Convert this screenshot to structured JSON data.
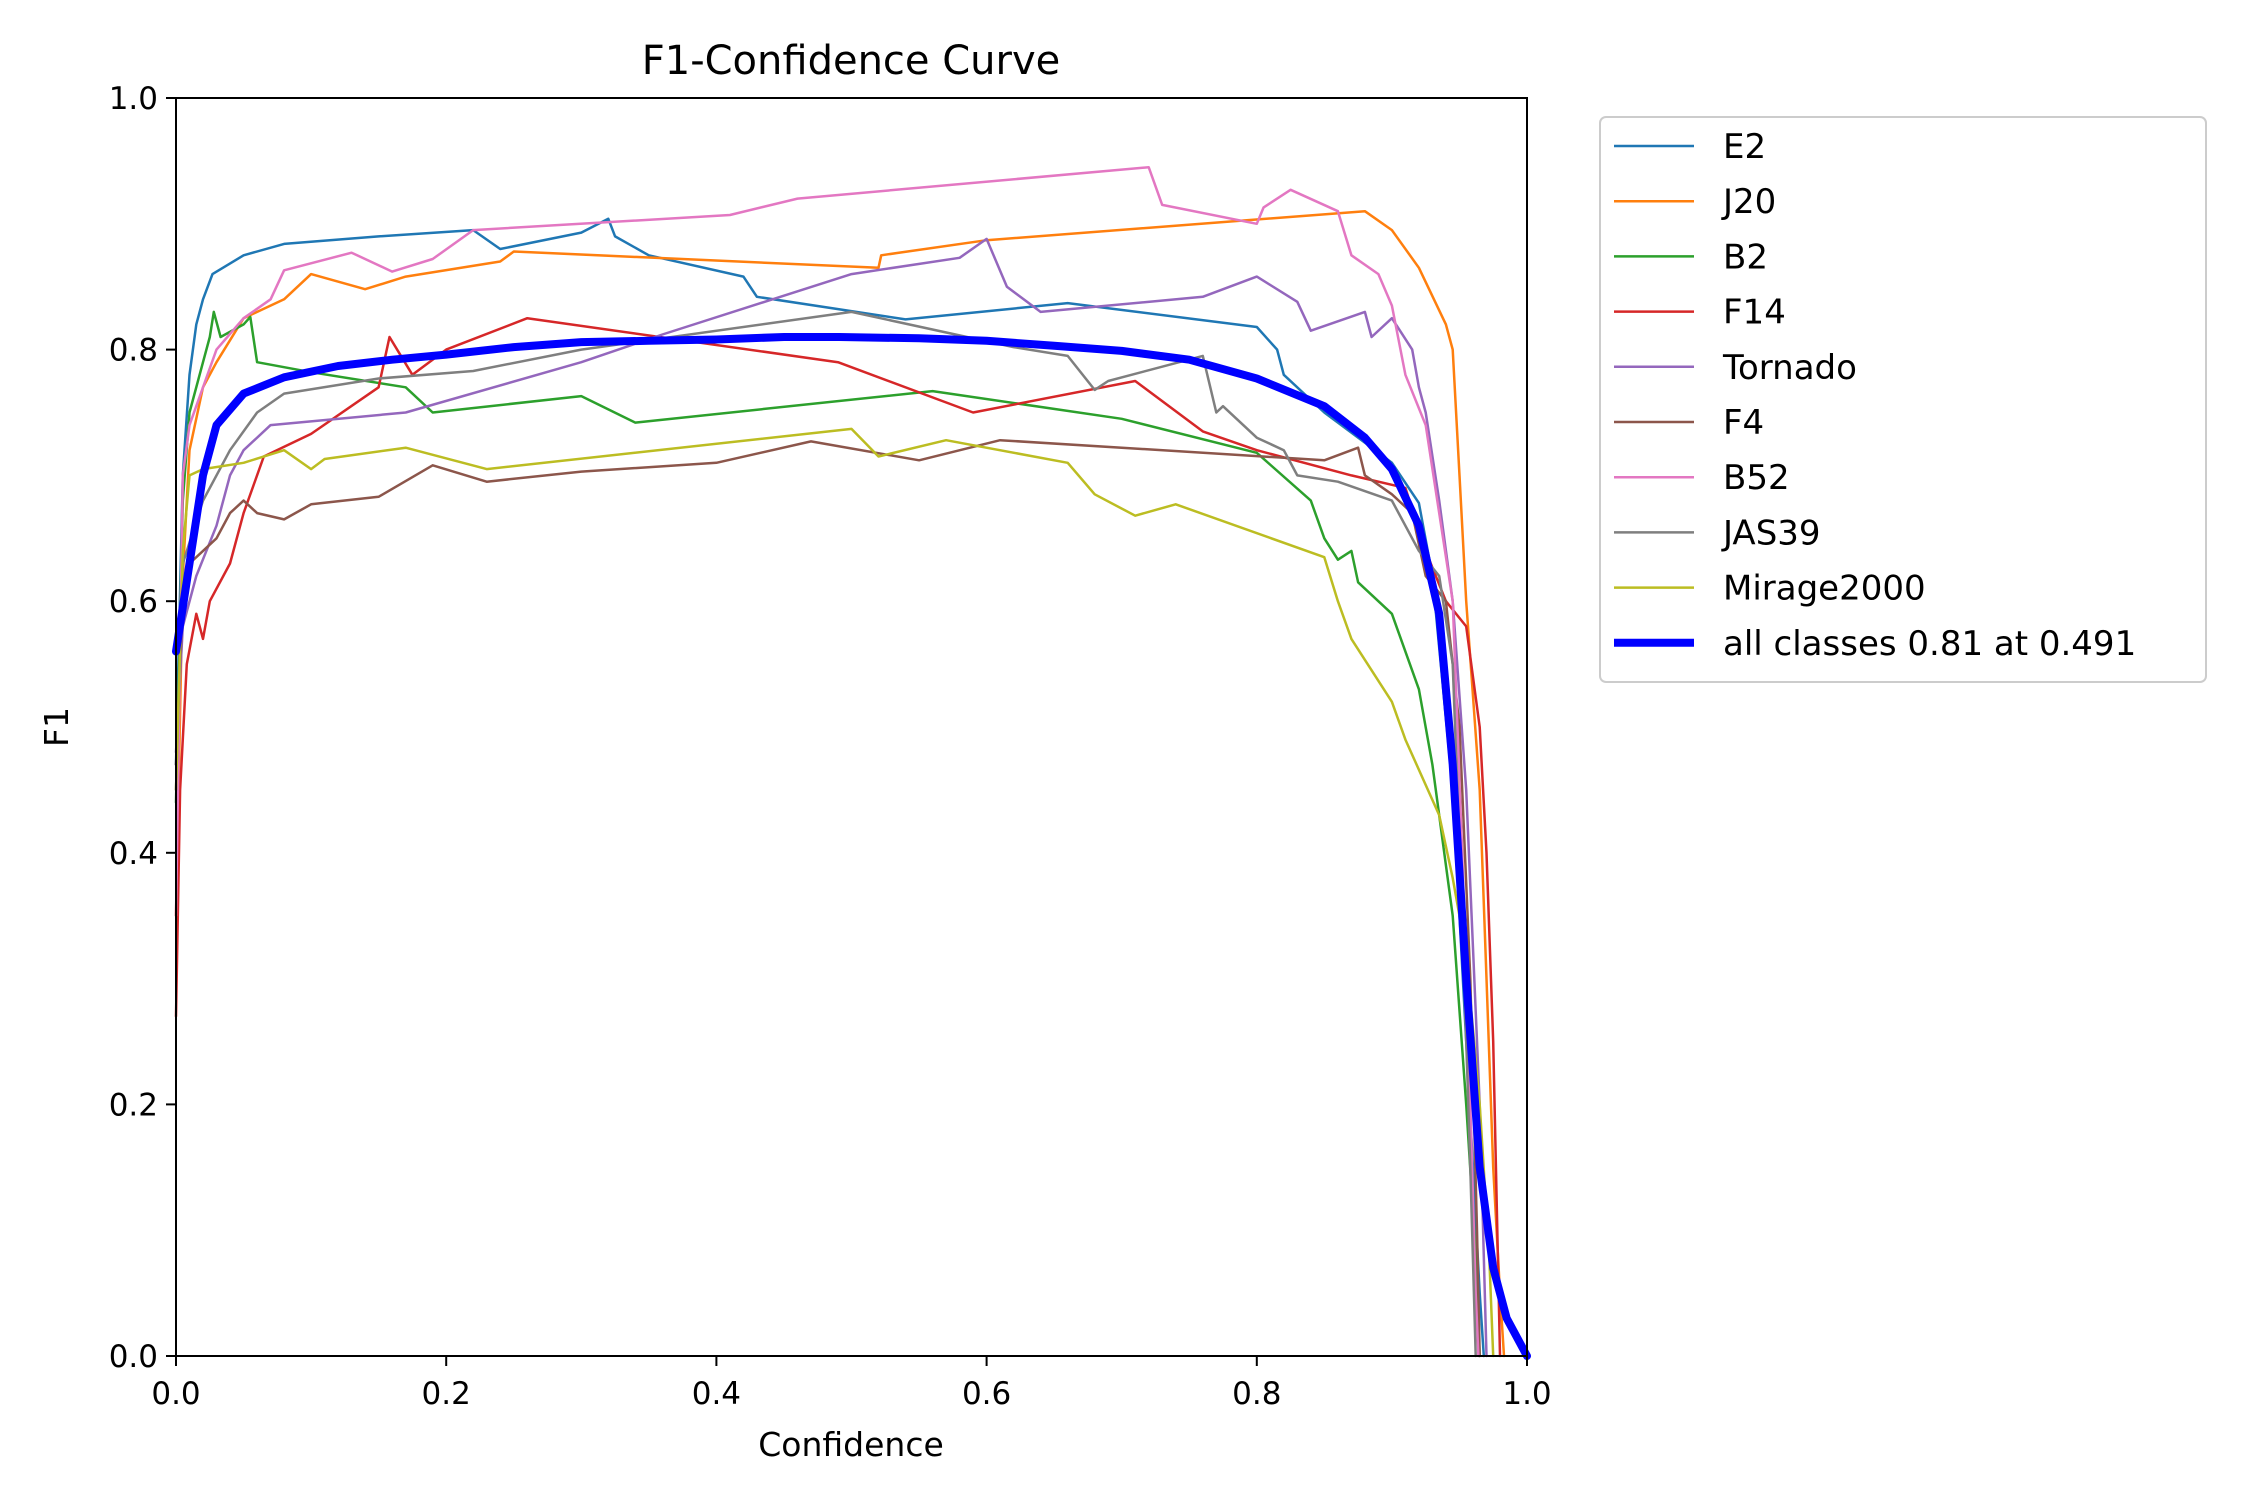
{
  "chart_data": {
    "type": "line",
    "title": "F1-Confidence Curve",
    "xlabel": "Confidence",
    "ylabel": "F1",
    "xlim": [
      0,
      1
    ],
    "ylim": [
      0,
      1
    ],
    "xticks": [
      "0.0",
      "0.2",
      "0.4",
      "0.6",
      "0.8",
      "1.0"
    ],
    "yticks": [
      "0.0",
      "0.2",
      "0.4",
      "0.6",
      "0.8",
      "1.0"
    ],
    "grid": false,
    "legend_position": "outside-upper-right",
    "series": [
      {
        "name": "E2",
        "color": "#1f77b4",
        "width": "thin",
        "points": [
          [
            0,
            0.47
          ],
          [
            0.005,
            0.7
          ],
          [
            0.01,
            0.78
          ],
          [
            0.015,
            0.82
          ],
          [
            0.02,
            0.84
          ],
          [
            0.027,
            0.86
          ],
          [
            0.05,
            0.875
          ],
          [
            0.08,
            0.884
          ],
          [
            0.15,
            0.89
          ],
          [
            0.22,
            0.895
          ],
          [
            0.24,
            0.88
          ],
          [
            0.3,
            0.893
          ],
          [
            0.32,
            0.904
          ],
          [
            0.325,
            0.89
          ],
          [
            0.35,
            0.875
          ],
          [
            0.42,
            0.858
          ],
          [
            0.43,
            0.842
          ],
          [
            0.54,
            0.824
          ],
          [
            0.66,
            0.837
          ],
          [
            0.8,
            0.818
          ],
          [
            0.815,
            0.8
          ],
          [
            0.82,
            0.78
          ],
          [
            0.85,
            0.75
          ],
          [
            0.9,
            0.71
          ],
          [
            0.92,
            0.678
          ],
          [
            0.93,
            0.62
          ],
          [
            0.945,
            0.45
          ],
          [
            0.955,
            0.25
          ],
          [
            0.965,
            0.05
          ],
          [
            0.968,
            0
          ]
        ]
      },
      {
        "name": "J20",
        "color": "#ff7f0e",
        "width": "thin",
        "points": [
          [
            0,
            0.35
          ],
          [
            0.005,
            0.62
          ],
          [
            0.01,
            0.72
          ],
          [
            0.02,
            0.77
          ],
          [
            0.03,
            0.79
          ],
          [
            0.05,
            0.825
          ],
          [
            0.08,
            0.84
          ],
          [
            0.1,
            0.86
          ],
          [
            0.14,
            0.848
          ],
          [
            0.17,
            0.858
          ],
          [
            0.24,
            0.87
          ],
          [
            0.25,
            0.878
          ],
          [
            0.52,
            0.865
          ],
          [
            0.522,
            0.875
          ],
          [
            0.6,
            0.887
          ],
          [
            0.88,
            0.91
          ],
          [
            0.9,
            0.895
          ],
          [
            0.92,
            0.865
          ],
          [
            0.94,
            0.82
          ],
          [
            0.945,
            0.8
          ],
          [
            0.95,
            0.7
          ],
          [
            0.955,
            0.6
          ],
          [
            0.965,
            0.45
          ],
          [
            0.97,
            0.3
          ],
          [
            0.975,
            0.15
          ],
          [
            0.98,
            0.05
          ],
          [
            0.983,
            0
          ]
        ]
      },
      {
        "name": "B2",
        "color": "#2ca02c",
        "width": "thin",
        "points": [
          [
            0,
            0.44
          ],
          [
            0.005,
            0.68
          ],
          [
            0.01,
            0.75
          ],
          [
            0.02,
            0.79
          ],
          [
            0.025,
            0.81
          ],
          [
            0.028,
            0.83
          ],
          [
            0.033,
            0.81
          ],
          [
            0.05,
            0.82
          ],
          [
            0.055,
            0.826
          ],
          [
            0.06,
            0.79
          ],
          [
            0.1,
            0.782
          ],
          [
            0.17,
            0.77
          ],
          [
            0.19,
            0.75
          ],
          [
            0.3,
            0.763
          ],
          [
            0.34,
            0.742
          ],
          [
            0.56,
            0.767
          ],
          [
            0.7,
            0.745
          ],
          [
            0.8,
            0.718
          ],
          [
            0.84,
            0.68
          ],
          [
            0.85,
            0.65
          ],
          [
            0.86,
            0.633
          ],
          [
            0.87,
            0.64
          ],
          [
            0.875,
            0.615
          ],
          [
            0.9,
            0.59
          ],
          [
            0.92,
            0.53
          ],
          [
            0.93,
            0.47
          ],
          [
            0.945,
            0.35
          ],
          [
            0.955,
            0.2
          ],
          [
            0.962,
            0.08
          ],
          [
            0.965,
            0
          ]
        ]
      },
      {
        "name": "F14",
        "color": "#d62728",
        "width": "thin",
        "points": [
          [
            0,
            0.27
          ],
          [
            0.003,
            0.45
          ],
          [
            0.008,
            0.55
          ],
          [
            0.015,
            0.59
          ],
          [
            0.02,
            0.57
          ],
          [
            0.025,
            0.6
          ],
          [
            0.04,
            0.63
          ],
          [
            0.05,
            0.67
          ],
          [
            0.065,
            0.715
          ],
          [
            0.1,
            0.733
          ],
          [
            0.15,
            0.77
          ],
          [
            0.158,
            0.81
          ],
          [
            0.175,
            0.78
          ],
          [
            0.2,
            0.8
          ],
          [
            0.26,
            0.825
          ],
          [
            0.49,
            0.79
          ],
          [
            0.59,
            0.75
          ],
          [
            0.71,
            0.775
          ],
          [
            0.76,
            0.735
          ],
          [
            0.8,
            0.72
          ],
          [
            0.87,
            0.7
          ],
          [
            0.91,
            0.69
          ],
          [
            0.925,
            0.64
          ],
          [
            0.94,
            0.6
          ],
          [
            0.955,
            0.58
          ],
          [
            0.965,
            0.5
          ],
          [
            0.97,
            0.4
          ],
          [
            0.975,
            0.25
          ],
          [
            0.978,
            0.1
          ],
          [
            0.98,
            0
          ]
        ]
      },
      {
        "name": "Tornado",
        "color": "#9467bd",
        "width": "thin",
        "points": [
          [
            0,
            0.48
          ],
          [
            0.005,
            0.58
          ],
          [
            0.015,
            0.62
          ],
          [
            0.03,
            0.66
          ],
          [
            0.04,
            0.7
          ],
          [
            0.05,
            0.72
          ],
          [
            0.07,
            0.74
          ],
          [
            0.17,
            0.75
          ],
          [
            0.3,
            0.79
          ],
          [
            0.36,
            0.812
          ],
          [
            0.5,
            0.86
          ],
          [
            0.58,
            0.873
          ],
          [
            0.6,
            0.888
          ],
          [
            0.615,
            0.85
          ],
          [
            0.64,
            0.83
          ],
          [
            0.76,
            0.842
          ],
          [
            0.8,
            0.858
          ],
          [
            0.83,
            0.838
          ],
          [
            0.84,
            0.815
          ],
          [
            0.88,
            0.83
          ],
          [
            0.885,
            0.81
          ],
          [
            0.9,
            0.825
          ],
          [
            0.915,
            0.8
          ],
          [
            0.92,
            0.77
          ],
          [
            0.925,
            0.75
          ],
          [
            0.935,
            0.68
          ],
          [
            0.945,
            0.6
          ],
          [
            0.955,
            0.45
          ],
          [
            0.965,
            0.2
          ],
          [
            0.97,
            0
          ]
        ]
      },
      {
        "name": "F4",
        "color": "#8c564b",
        "width": "thin",
        "points": [
          [
            0,
            0.47
          ],
          [
            0.005,
            0.6
          ],
          [
            0.01,
            0.63
          ],
          [
            0.02,
            0.64
          ],
          [
            0.03,
            0.65
          ],
          [
            0.04,
            0.67
          ],
          [
            0.05,
            0.68
          ],
          [
            0.06,
            0.67
          ],
          [
            0.08,
            0.665
          ],
          [
            0.1,
            0.677
          ],
          [
            0.15,
            0.683
          ],
          [
            0.19,
            0.708
          ],
          [
            0.23,
            0.695
          ],
          [
            0.3,
            0.703
          ],
          [
            0.4,
            0.71
          ],
          [
            0.47,
            0.727
          ],
          [
            0.55,
            0.712
          ],
          [
            0.61,
            0.728
          ],
          [
            0.85,
            0.712
          ],
          [
            0.875,
            0.722
          ],
          [
            0.88,
            0.7
          ],
          [
            0.9,
            0.685
          ],
          [
            0.915,
            0.67
          ],
          [
            0.925,
            0.62
          ],
          [
            0.94,
            0.6
          ],
          [
            0.95,
            0.5
          ],
          [
            0.958,
            0.3
          ],
          [
            0.963,
            0.1
          ],
          [
            0.965,
            0
          ]
        ]
      },
      {
        "name": "B52",
        "color": "#e377c2",
        "width": "thin",
        "points": [
          [
            0,
            0.35
          ],
          [
            0.005,
            0.7
          ],
          [
            0.01,
            0.74
          ],
          [
            0.02,
            0.77
          ],
          [
            0.03,
            0.8
          ],
          [
            0.05,
            0.825
          ],
          [
            0.07,
            0.84
          ],
          [
            0.08,
            0.863
          ],
          [
            0.13,
            0.877
          ],
          [
            0.16,
            0.862
          ],
          [
            0.19,
            0.872
          ],
          [
            0.22,
            0.895
          ],
          [
            0.41,
            0.907
          ],
          [
            0.46,
            0.92
          ],
          [
            0.72,
            0.945
          ],
          [
            0.73,
            0.915
          ],
          [
            0.8,
            0.9
          ],
          [
            0.805,
            0.913
          ],
          [
            0.825,
            0.927
          ],
          [
            0.86,
            0.91
          ],
          [
            0.87,
            0.875
          ],
          [
            0.89,
            0.86
          ],
          [
            0.9,
            0.835
          ],
          [
            0.91,
            0.78
          ],
          [
            0.925,
            0.74
          ],
          [
            0.935,
            0.67
          ],
          [
            0.945,
            0.6
          ],
          [
            0.952,
            0.4
          ],
          [
            0.958,
            0.2
          ],
          [
            0.962,
            0.05
          ],
          [
            0.964,
            0
          ]
        ]
      },
      {
        "name": "JAS39",
        "color": "#7f7f7f",
        "width": "thin",
        "points": [
          [
            0,
            0.45
          ],
          [
            0.005,
            0.63
          ],
          [
            0.02,
            0.68
          ],
          [
            0.04,
            0.72
          ],
          [
            0.06,
            0.75
          ],
          [
            0.08,
            0.765
          ],
          [
            0.15,
            0.777
          ],
          [
            0.22,
            0.783
          ],
          [
            0.3,
            0.8
          ],
          [
            0.5,
            0.83
          ],
          [
            0.62,
            0.802
          ],
          [
            0.66,
            0.795
          ],
          [
            0.68,
            0.768
          ],
          [
            0.69,
            0.775
          ],
          [
            0.76,
            0.795
          ],
          [
            0.77,
            0.75
          ],
          [
            0.775,
            0.755
          ],
          [
            0.8,
            0.73
          ],
          [
            0.82,
            0.72
          ],
          [
            0.83,
            0.7
          ],
          [
            0.86,
            0.695
          ],
          [
            0.9,
            0.68
          ],
          [
            0.92,
            0.64
          ],
          [
            0.935,
            0.62
          ],
          [
            0.945,
            0.55
          ],
          [
            0.952,
            0.35
          ],
          [
            0.958,
            0.15
          ],
          [
            0.962,
            0
          ]
        ]
      },
      {
        "name": "Mirage2000",
        "color": "#bcbd22",
        "width": "thin",
        "points": [
          [
            0,
            0.45
          ],
          [
            0.005,
            0.64
          ],
          [
            0.01,
            0.7
          ],
          [
            0.02,
            0.705
          ],
          [
            0.05,
            0.71
          ],
          [
            0.08,
            0.72
          ],
          [
            0.1,
            0.705
          ],
          [
            0.11,
            0.713
          ],
          [
            0.17,
            0.722
          ],
          [
            0.23,
            0.705
          ],
          [
            0.5,
            0.737
          ],
          [
            0.52,
            0.715
          ],
          [
            0.57,
            0.728
          ],
          [
            0.66,
            0.71
          ],
          [
            0.68,
            0.685
          ],
          [
            0.71,
            0.668
          ],
          [
            0.74,
            0.677
          ],
          [
            0.85,
            0.635
          ],
          [
            0.86,
            0.6
          ],
          [
            0.87,
            0.57
          ],
          [
            0.9,
            0.52
          ],
          [
            0.91,
            0.49
          ],
          [
            0.935,
            0.43
          ],
          [
            0.945,
            0.38
          ],
          [
            0.955,
            0.32
          ],
          [
            0.965,
            0.2
          ],
          [
            0.972,
            0.08
          ],
          [
            0.975,
            0
          ]
        ]
      },
      {
        "name": "all classes 0.81 at 0.491",
        "color": "#0000ff",
        "width": "thick",
        "points": [
          [
            0,
            0.56
          ],
          [
            0.01,
            0.63
          ],
          [
            0.02,
            0.7
          ],
          [
            0.03,
            0.74
          ],
          [
            0.05,
            0.765
          ],
          [
            0.08,
            0.778
          ],
          [
            0.12,
            0.787
          ],
          [
            0.16,
            0.792
          ],
          [
            0.2,
            0.796
          ],
          [
            0.25,
            0.802
          ],
          [
            0.3,
            0.806
          ],
          [
            0.35,
            0.807
          ],
          [
            0.4,
            0.808
          ],
          [
            0.45,
            0.81
          ],
          [
            0.491,
            0.81
          ],
          [
            0.55,
            0.809
          ],
          [
            0.6,
            0.807
          ],
          [
            0.65,
            0.803
          ],
          [
            0.7,
            0.799
          ],
          [
            0.75,
            0.792
          ],
          [
            0.8,
            0.777
          ],
          [
            0.85,
            0.755
          ],
          [
            0.88,
            0.73
          ],
          [
            0.9,
            0.705
          ],
          [
            0.92,
            0.66
          ],
          [
            0.935,
            0.59
          ],
          [
            0.945,
            0.47
          ],
          [
            0.955,
            0.3
          ],
          [
            0.965,
            0.15
          ],
          [
            0.975,
            0.07
          ],
          [
            0.985,
            0.03
          ],
          [
            1.0,
            0
          ]
        ]
      }
    ]
  }
}
